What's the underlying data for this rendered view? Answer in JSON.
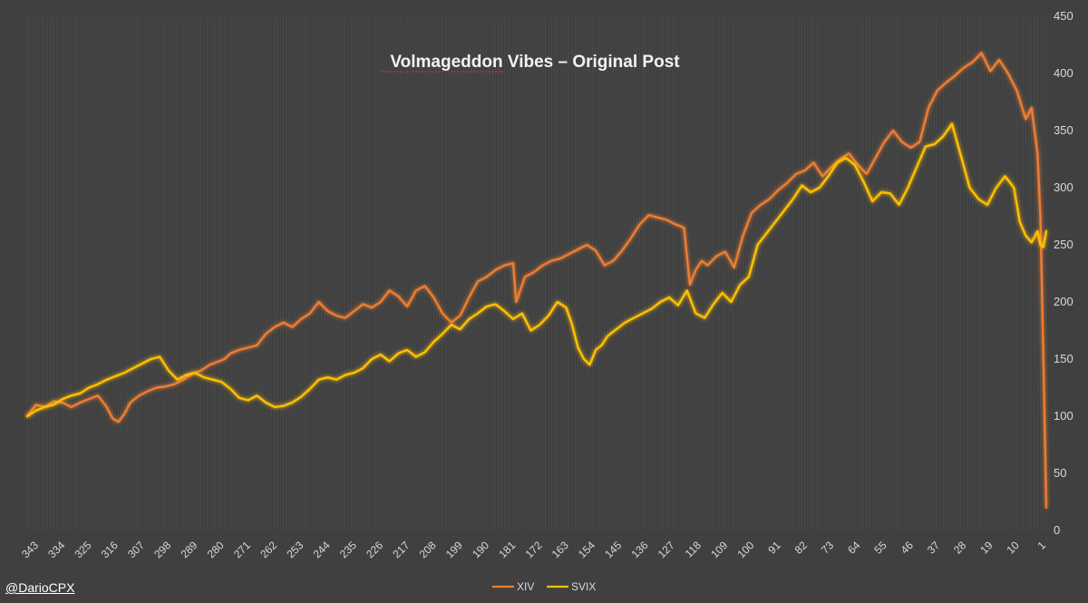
{
  "credit": "@DarioCPX",
  "chart_data": {
    "type": "line",
    "title": "Volmageddon Vibes – Original Post",
    "xlabel": "",
    "ylabel": "",
    "ylim": [
      0,
      450
    ],
    "yticks": [
      0,
      50,
      100,
      150,
      200,
      250,
      300,
      350,
      400,
      450
    ],
    "y_axis_side": "right",
    "x_reversed": true,
    "xlim": [
      1,
      347
    ],
    "xticks": [
      343,
      334,
      325,
      316,
      307,
      298,
      289,
      280,
      271,
      262,
      253,
      244,
      235,
      226,
      217,
      208,
      199,
      190,
      181,
      172,
      163,
      154,
      145,
      136,
      127,
      118,
      109,
      100,
      91,
      82,
      73,
      64,
      55,
      46,
      37,
      28,
      19,
      10,
      1
    ],
    "grid": "vertical",
    "legend_position": "bottom",
    "colors": {
      "background": "#404040",
      "grid": "#4e4e4e",
      "XIV": "#ed7d31",
      "SVIX": "#ffc000"
    },
    "series": [
      {
        "name": "XIV",
        "x": [
          347,
          344,
          341,
          338,
          335,
          332,
          329,
          326,
          323,
          320,
          318,
          316,
          314,
          312,
          309,
          306,
          303,
          300,
          297,
          294,
          291,
          288,
          285,
          282,
          280,
          278,
          275,
          272,
          269,
          266,
          263,
          260,
          257,
          254,
          251,
          248,
          245,
          242,
          239,
          236,
          233,
          230,
          227,
          224,
          221,
          218,
          215,
          212,
          209,
          206,
          203,
          200,
          197,
          194,
          191,
          188,
          185,
          182,
          181,
          178,
          175,
          172,
          169,
          166,
          163,
          160,
          157,
          154,
          151,
          148,
          145,
          142,
          139,
          136,
          133,
          130,
          127,
          124,
          122,
          120,
          118,
          116,
          113,
          110,
          107,
          104,
          101,
          98,
          95,
          92,
          89,
          86,
          83,
          80,
          77,
          74,
          71,
          68,
          65,
          62,
          59,
          56,
          53,
          50,
          47,
          44,
          41,
          38,
          35,
          32,
          29,
          26,
          23,
          20,
          17,
          14,
          11,
          8,
          6,
          4,
          3,
          2,
          1
        ],
        "values": [
          100,
          110,
          108,
          113,
          112,
          108,
          112,
          115,
          118,
          108,
          98,
          95,
          102,
          112,
          118,
          122,
          125,
          126,
          128,
          132,
          137,
          140,
          145,
          148,
          150,
          155,
          158,
          160,
          162,
          172,
          178,
          182,
          178,
          185,
          190,
          200,
          192,
          188,
          186,
          192,
          198,
          195,
          200,
          210,
          205,
          196,
          210,
          214,
          204,
          190,
          182,
          188,
          204,
          218,
          222,
          228,
          232,
          234,
          200,
          222,
          226,
          232,
          236,
          238,
          242,
          246,
          250,
          245,
          232,
          236,
          245,
          256,
          268,
          276,
          274,
          272,
          268,
          265,
          215,
          228,
          236,
          232,
          240,
          244,
          230,
          258,
          278,
          285,
          290,
          298,
          304,
          312,
          315,
          322,
          310,
          318,
          325,
          330,
          320,
          312,
          326,
          340,
          350,
          340,
          335,
          340,
          370,
          385,
          392,
          398,
          405,
          410,
          418,
          402,
          412,
          400,
          385,
          360,
          370,
          330,
          275,
          150,
          20
        ]
      },
      {
        "name": "SVIX",
        "x": [
          347,
          344,
          341,
          338,
          335,
          332,
          329,
          326,
          323,
          320,
          317,
          314,
          311,
          308,
          305,
          302,
          299,
          296,
          293,
          290,
          287,
          284,
          281,
          278,
          275,
          272,
          269,
          266,
          263,
          260,
          257,
          254,
          251,
          248,
          245,
          242,
          239,
          236,
          233,
          230,
          227,
          224,
          221,
          218,
          215,
          212,
          209,
          206,
          203,
          200,
          197,
          194,
          191,
          188,
          185,
          182,
          179,
          176,
          173,
          170,
          167,
          164,
          162,
          160,
          158,
          156,
          154,
          152,
          150,
          147,
          144,
          141,
          138,
          135,
          132,
          129,
          126,
          123,
          120,
          117,
          114,
          111,
          108,
          105,
          102,
          99,
          96,
          93,
          90,
          87,
          84,
          81,
          78,
          75,
          72,
          69,
          66,
          63,
          60,
          57,
          54,
          51,
          48,
          45,
          42,
          39,
          36,
          33,
          30,
          27,
          24,
          21,
          18,
          15,
          12,
          10,
          8,
          6,
          4,
          3,
          2,
          1
        ],
        "values": [
          100,
          105,
          108,
          110,
          115,
          118,
          120,
          125,
          128,
          132,
          135,
          138,
          142,
          146,
          150,
          152,
          140,
          132,
          136,
          138,
          134,
          132,
          130,
          124,
          116,
          114,
          118,
          112,
          108,
          109,
          112,
          117,
          124,
          132,
          134,
          132,
          136,
          138,
          142,
          150,
          154,
          148,
          155,
          158,
          152,
          156,
          165,
          172,
          180,
          176,
          185,
          190,
          196,
          198,
          192,
          185,
          190,
          175,
          180,
          188,
          200,
          195,
          180,
          160,
          150,
          145,
          158,
          162,
          170,
          176,
          182,
          186,
          190,
          194,
          200,
          204,
          197,
          210,
          190,
          186,
          198,
          208,
          200,
          215,
          222,
          250,
          260,
          270,
          280,
          290,
          302,
          296,
          300,
          310,
          322,
          326,
          320,
          305,
          288,
          296,
          295,
          285,
          300,
          318,
          336,
          338,
          345,
          356,
          328,
          300,
          290,
          285,
          300,
          310,
          300,
          270,
          258,
          252,
          262,
          250,
          248,
          262
        ]
      }
    ]
  }
}
